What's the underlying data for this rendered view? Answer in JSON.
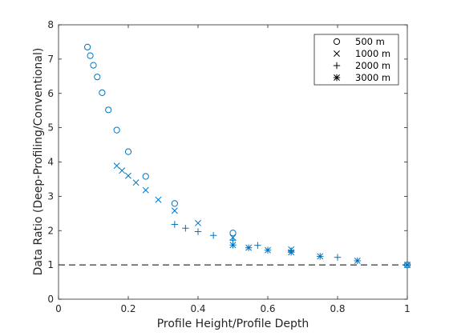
{
  "chart_data": {
    "type": "scatter",
    "xlabel": "Profile Height/Profile Depth",
    "ylabel": "Data Ratio (Deep-Profiling/Conventional)",
    "xlim": [
      0,
      1
    ],
    "ylim": [
      0,
      8
    ],
    "xticks": [
      0,
      0.2,
      0.4,
      0.6,
      0.8,
      1
    ],
    "yticks": [
      0,
      1,
      2,
      3,
      4,
      5,
      6,
      7,
      8
    ],
    "xtick_labels": [
      "0",
      "0.2",
      "0.4",
      "0.6",
      "0.8",
      "1"
    ],
    "ytick_labels": [
      "0",
      "1",
      "2",
      "3",
      "4",
      "5",
      "6",
      "7",
      "8"
    ],
    "grid": false,
    "legend": "top-right",
    "reference_line": {
      "y": 1,
      "style": "dashed",
      "color": "#000000"
    },
    "marker_color": "#0072BD",
    "series": [
      {
        "name": "500 m",
        "marker": "circle",
        "points": [
          [
            0.083,
            7.35
          ],
          [
            0.091,
            7.1
          ],
          [
            0.1,
            6.82
          ],
          [
            0.111,
            6.48
          ],
          [
            0.125,
            6.02
          ],
          [
            0.143,
            5.52
          ],
          [
            0.167,
            4.93
          ],
          [
            0.2,
            4.3
          ],
          [
            0.25,
            3.58
          ],
          [
            0.333,
            2.79
          ],
          [
            0.5,
            1.93
          ],
          [
            1.0,
            1.0
          ]
        ]
      },
      {
        "name": "1000 m",
        "marker": "x",
        "points": [
          [
            0.167,
            3.89
          ],
          [
            0.182,
            3.75
          ],
          [
            0.2,
            3.6
          ],
          [
            0.222,
            3.4
          ],
          [
            0.25,
            3.18
          ],
          [
            0.286,
            2.9
          ],
          [
            0.333,
            2.58
          ],
          [
            0.4,
            2.22
          ],
          [
            0.5,
            1.8
          ],
          [
            0.667,
            1.45
          ],
          [
            1.0,
            1.0
          ]
        ]
      },
      {
        "name": "2000 m",
        "marker": "plus",
        "points": [
          [
            0.333,
            2.18
          ],
          [
            0.364,
            2.07
          ],
          [
            0.4,
            1.97
          ],
          [
            0.444,
            1.86
          ],
          [
            0.5,
            1.72
          ],
          [
            0.571,
            1.57
          ],
          [
            0.667,
            1.41
          ],
          [
            0.8,
            1.22
          ],
          [
            1.0,
            1.0
          ]
        ]
      },
      {
        "name": "3000 m",
        "marker": "asterisk",
        "points": [
          [
            0.5,
            1.58
          ],
          [
            0.545,
            1.5
          ],
          [
            0.6,
            1.43
          ],
          [
            0.667,
            1.37
          ],
          [
            0.75,
            1.25
          ],
          [
            0.857,
            1.12
          ],
          [
            1.0,
            1.0
          ]
        ]
      }
    ]
  }
}
